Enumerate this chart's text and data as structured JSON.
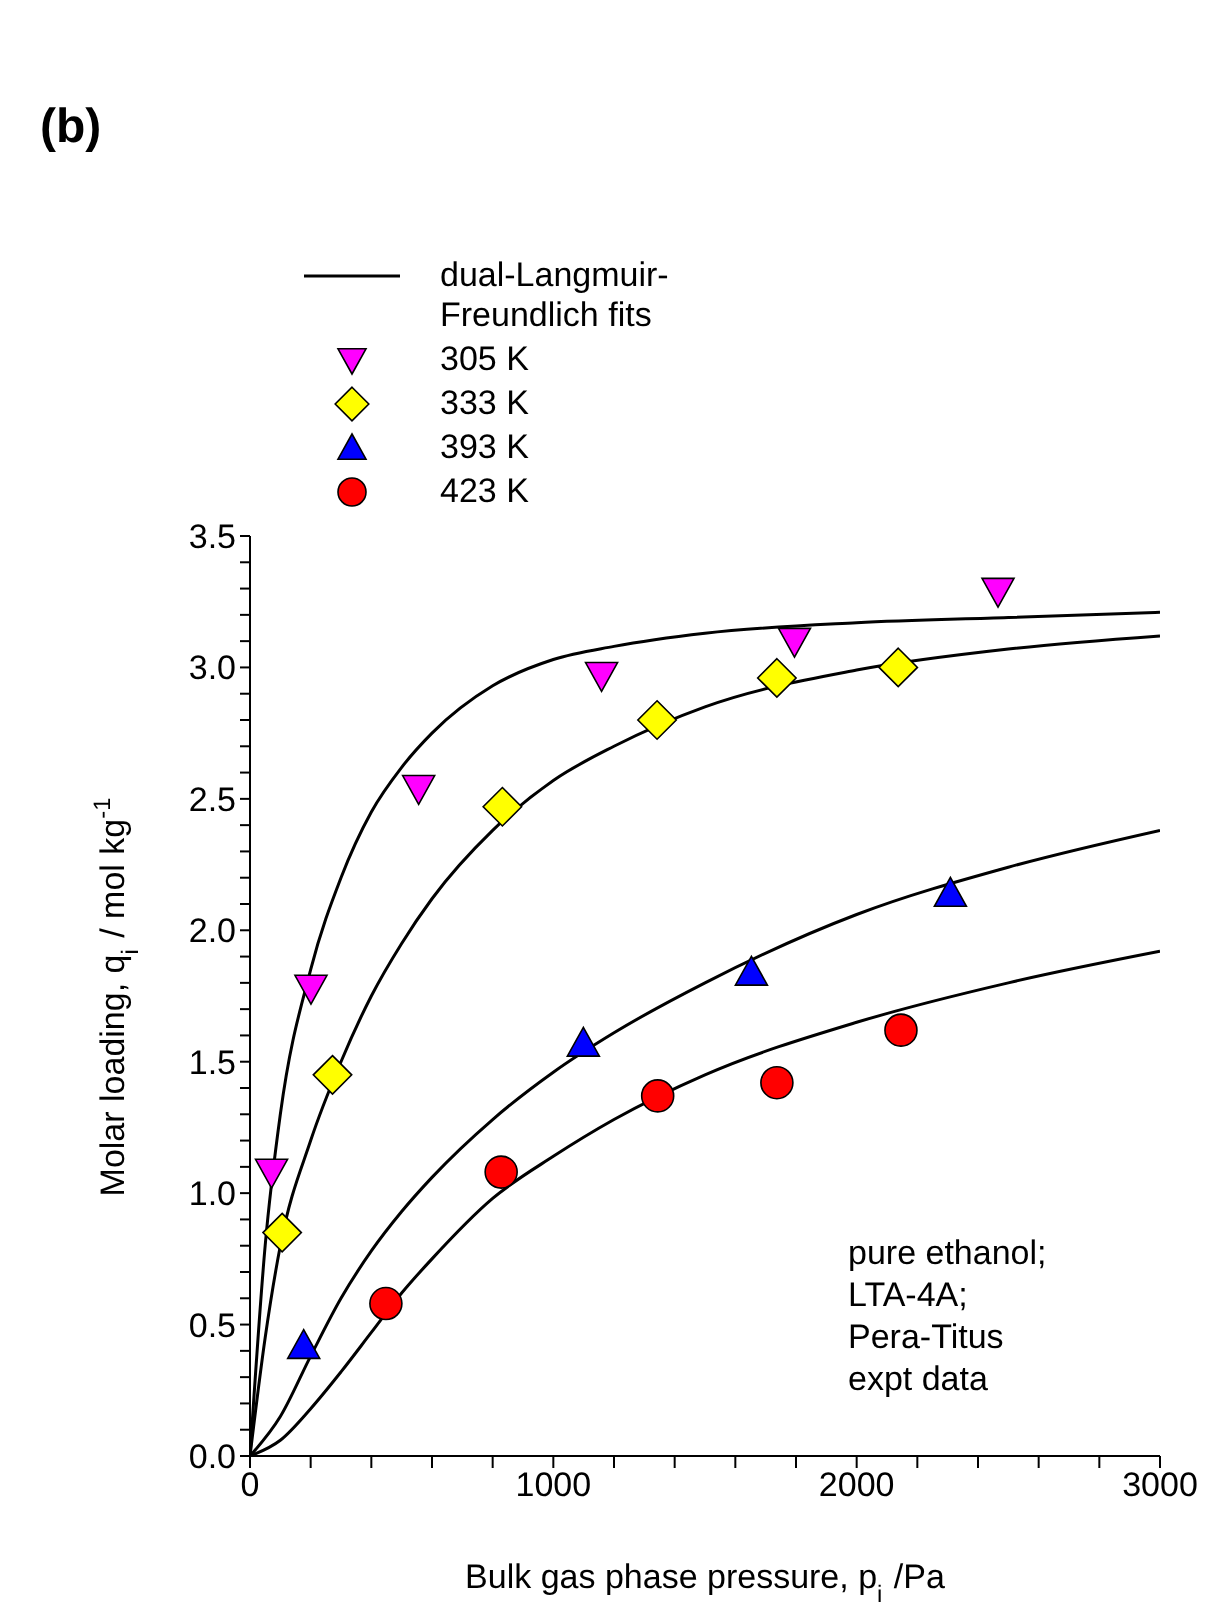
{
  "chart_data": {
    "type": "scatter",
    "title": "(b)",
    "xlabel": "Bulk gas phase pressure, p$_{i}$ /Pa",
    "ylabel": "Molar loading, q$_{i}$ / mol kg$^{-1}$",
    "annotations": [
      "pure ethanol;\nLTA-4A;\nPera-Titus\nexpt data"
    ],
    "xlim": [
      0,
      3000
    ],
    "xticks": [
      0,
      {
        "value": 200,
        "label": null
      },
      {
        "value": 400,
        "label": null
      },
      {
        "value": 600,
        "label": null
      },
      {
        "value": 800,
        "label": null
      },
      1000,
      {
        "value": 1200,
        "label": null
      },
      {
        "value": 1400,
        "label": null
      },
      {
        "value": 1600,
        "label": null
      },
      {
        "value": 1800,
        "label": null
      },
      2000,
      {
        "value": 2200,
        "label": null
      },
      {
        "value": 2400,
        "label": null
      },
      {
        "value": 2600,
        "label": null
      },
      {
        "value": 2800,
        "label": null
      },
      3000
    ],
    "ylim": [
      0,
      3.5
    ],
    "yticks": [
      {
        "value": 0,
        "label": "0.0"
      },
      {
        "value": 0.1,
        "label": null
      },
      {
        "value": 0.2,
        "label": null
      },
      {
        "value": 0.3,
        "label": null
      },
      {
        "value": 0.4,
        "label": null
      },
      {
        "value": 0.5,
        "label": "0.5"
      },
      {
        "value": 0.6,
        "label": null
      },
      {
        "value": 0.7,
        "label": null
      },
      {
        "value": 0.8,
        "label": null
      },
      {
        "value": 0.9,
        "label": null
      },
      {
        "value": 1,
        "label": "1.0"
      },
      {
        "value": 1.1,
        "label": null
      },
      {
        "value": 1.2,
        "label": null
      },
      {
        "value": 1.3,
        "label": null
      },
      {
        "value": 1.4,
        "label": null
      },
      {
        "value": 1.5,
        "label": "1.5"
      },
      {
        "value": 1.6,
        "label": null
      },
      {
        "value": 1.7,
        "label": null
      },
      {
        "value": 1.8,
        "label": null
      },
      {
        "value": 1.9,
        "label": null
      },
      {
        "value": 2,
        "label": "2.0"
      },
      {
        "value": 2.1,
        "label": null
      },
      {
        "value": 2.2,
        "label": null
      },
      {
        "value": 2.3,
        "label": null
      },
      {
        "value": 2.4,
        "label": null
      },
      {
        "value": 2.5,
        "label": "2.5"
      },
      {
        "value": 2.6,
        "label": null
      },
      {
        "value": 2.7,
        "label": null
      },
      {
        "value": 2.8,
        "label": null
      },
      {
        "value": 2.9,
        "label": null
      },
      {
        "value": 3,
        "label": "3.0"
      },
      {
        "value": 3.1,
        "label": null
      },
      {
        "value": 3.2,
        "label": null
      },
      {
        "value": 3.3,
        "label": null
      },
      {
        "value": 3.4,
        "label": null
      },
      {
        "value": 3.5,
        "label": "3.5"
      }
    ],
    "grid": false,
    "legend": "top left",
    "series": [
      {
        "name": "dual-Langmuir-Freundlich fits",
        "type": "line",
        "color": "#000000",
        "marker": "none",
        "line_style": "solid",
        "x": [
          0,
          50,
          100,
          200,
          300,
          400,
          500,
          600,
          800,
          1000,
          1200,
          1500,
          2000,
          2500,
          3000
        ],
        "values": [
          0,
          0.8,
          1.3,
          1.85,
          2.2,
          2.45,
          2.62,
          2.75,
          2.93,
          3.03,
          3.08,
          3.13,
          3.17,
          3.19,
          3.21
        ]
      },
      {
        "type": "line",
        "color": "#000000",
        "marker": "none",
        "line_style": "solid",
        "x": [
          0,
          50,
          100,
          200,
          300,
          400,
          500,
          600,
          800,
          1000,
          1200,
          1500,
          2000,
          2500,
          3000
        ],
        "values": [
          0,
          0.45,
          0.8,
          1.2,
          1.5,
          1.75,
          1.95,
          2.12,
          2.38,
          2.57,
          2.7,
          2.85,
          2.99,
          3.07,
          3.12
        ]
      },
      {
        "type": "line",
        "color": "#000000",
        "marker": "none",
        "line_style": "solid",
        "x": [
          0,
          100,
          200,
          300,
          400,
          500,
          600,
          800,
          1000,
          1200,
          1500,
          2000,
          2500,
          3000
        ],
        "values": [
          0,
          0.15,
          0.38,
          0.6,
          0.78,
          0.93,
          1.06,
          1.28,
          1.46,
          1.61,
          1.8,
          2.06,
          2.24,
          2.38
        ]
      },
      {
        "type": "line",
        "color": "#000000",
        "marker": "none",
        "line_style": "solid",
        "x": [
          0,
          100,
          200,
          300,
          400,
          500,
          600,
          800,
          1000,
          1200,
          1500,
          2000,
          2500,
          3000
        ],
        "values": [
          0,
          0.06,
          0.18,
          0.32,
          0.47,
          0.62,
          0.75,
          0.98,
          1.14,
          1.28,
          1.45,
          1.65,
          1.8,
          1.92
        ]
      },
      {
        "name": "305 K",
        "color": "#ff00ff",
        "marker": "triangle_down",
        "x": [
          71,
          201,
          556,
          1159,
          1795,
          2466
        ],
        "values": [
          1.08,
          1.78,
          2.54,
          2.97,
          3.1,
          3.29
        ]
      },
      {
        "name": "333 K",
        "color": "#ffff00",
        "marker": "diamond",
        "x": [
          106,
          272,
          832,
          1342,
          1737,
          2137
        ],
        "values": [
          0.85,
          1.45,
          2.47,
          2.8,
          2.96,
          3.0
        ]
      },
      {
        "name": "393 K",
        "color": "#0000ff",
        "marker": "triangle",
        "x": [
          177,
          1099,
          1653,
          2309
        ],
        "values": [
          0.42,
          1.57,
          1.84,
          2.14
        ]
      },
      {
        "name": "423 K",
        "color": "#ff0000",
        "marker": "circle",
        "x": [
          448,
          828,
          1344,
          1737,
          2146
        ],
        "values": [
          0.58,
          1.08,
          1.37,
          1.42,
          1.62
        ]
      }
    ]
  }
}
